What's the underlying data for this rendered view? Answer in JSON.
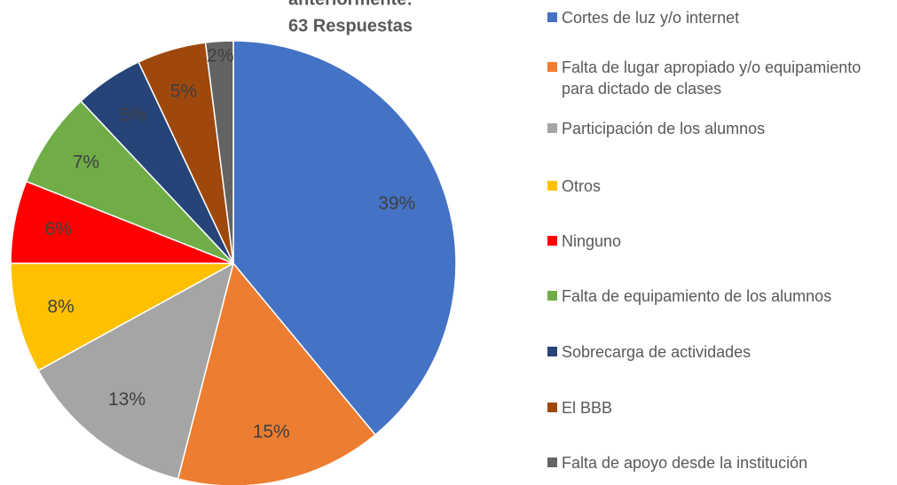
{
  "chart_data": {
    "type": "pie",
    "title": [
      "anteriormente:",
      "63 Respuestas"
    ],
    "categories": [
      "Cortes de luz y/o internet",
      "Falta de lugar apropiado y/o equipamiento para dictado de clases",
      "Participación de los alumnos",
      "Otros",
      "Ninguno",
      "Falta de equipamiento de los alumnos",
      "Sobrecarga de actividades",
      "El BBB",
      "Falta de apoyo desde la institución"
    ],
    "values": [
      39,
      15,
      13,
      8,
      6,
      7,
      5,
      5,
      2
    ],
    "value_labels": [
      "39%",
      "15%",
      "13%",
      "8%",
      "6%",
      "7%",
      "5%",
      "5%",
      "2%"
    ],
    "colors": [
      "#4472c4",
      "#ed7d31",
      "#a5a5a5",
      "#ffc000",
      "#ff0000",
      "#70ad47",
      "#264478",
      "#9e480e",
      "#636363"
    ],
    "legend": "right"
  }
}
